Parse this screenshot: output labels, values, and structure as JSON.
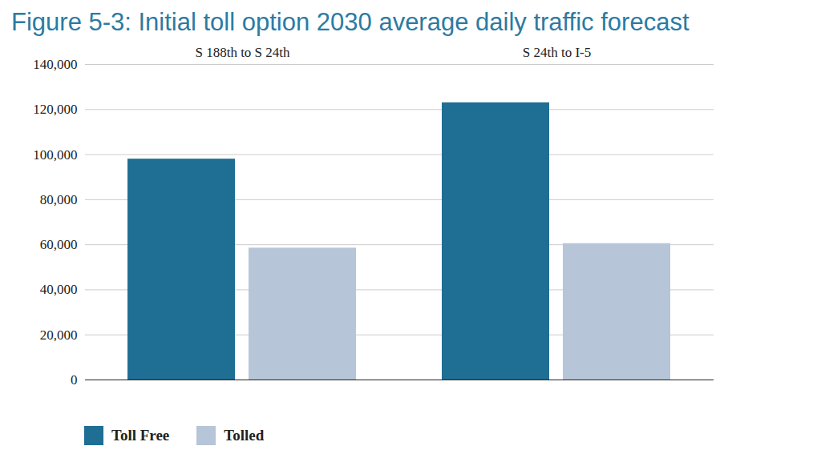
{
  "chart_data": {
    "type": "bar",
    "title": "Figure 5-3: Initial toll option 2030 average daily traffic forecast",
    "categories": [
      "S 188th to S 24th",
      "S 24th to I-5"
    ],
    "series": [
      {
        "name": "Toll Free",
        "color": "#1f6e94",
        "values": [
          98000,
          123000
        ]
      },
      {
        "name": "Tolled",
        "color": "#b6c5d8",
        "values": [
          58500,
          60500
        ]
      }
    ],
    "ylim": [
      0,
      140000
    ],
    "yticks": [
      0,
      {
        "value": 20000,
        "label": "20,000"
      },
      {
        "value": 40000,
        "label": "40,000"
      },
      {
        "value": 60000,
        "label": "60,000"
      },
      {
        "value": 80000,
        "label": "80,000"
      },
      {
        "value": 100000,
        "label": "100,000"
      },
      {
        "value": 120000,
        "label": "120,000"
      },
      {
        "value": 140000,
        "label": "140,000"
      }
    ],
    "grid": true,
    "legend": "bottom-left"
  }
}
